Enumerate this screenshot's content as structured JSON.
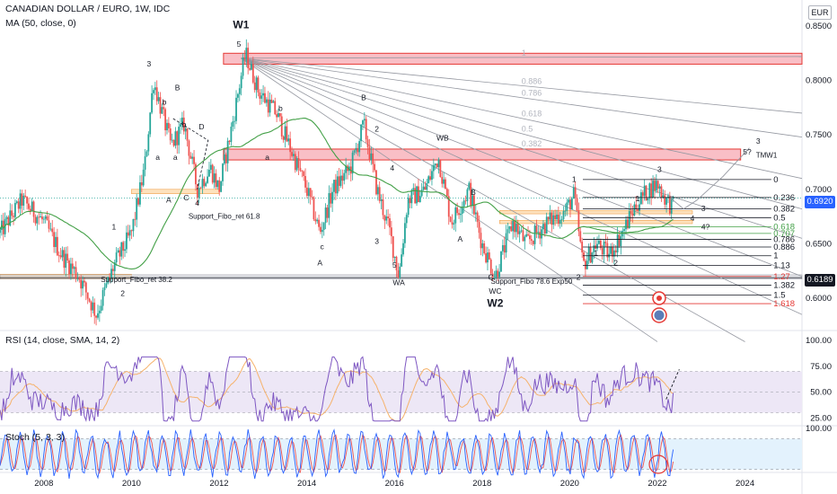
{
  "header": {
    "symbol_line": "CANADIAN DOLLAR / EURO, 1W, IDC",
    "ma_line": "MA (50, close, 0)",
    "rsi_line": "RSI (14, close, SMA, 14, 2)",
    "stoch_line": "Stoch (5, 3, 3)"
  },
  "price_scale": {
    "currency": "EUR",
    "current_price": "0.6920",
    "support_price": "0.6189",
    "current_price_bg": "#2962ff",
    "support_price_bg": "#131722"
  },
  "colors": {
    "candle_up": "#26a69a",
    "candle_down": "#ef5350",
    "ma": "#43a047",
    "rsi": "#7e57c2",
    "rsi_signal": "#f6b26b",
    "stoch_k": "#2962ff",
    "stoch_d": "#ef5350",
    "resistance_zone": "#f8b4bc",
    "resistance_border": "#e53935",
    "support_zone": "#fcd8a8",
    "rsi_band": "#ede7f6",
    "stoch_band": "#e3f2fd"
  },
  "chart_data": [
    {
      "type": "candlestick",
      "pane": "price",
      "x_ticks": [
        "2008",
        "2010",
        "2012",
        "2014",
        "2016",
        "2018",
        "2020",
        "2022",
        "2024"
      ],
      "y_ticks": [
        "0.8500",
        "0.8000",
        "0.7500",
        "0.7000",
        "0.6500",
        "0.6000"
      ],
      "ylim": [
        0.575,
        0.865
      ],
      "price_path": [
        [
          2007.0,
          0.66
        ],
        [
          2007.5,
          0.69
        ],
        [
          2008.0,
          0.67
        ],
        [
          2008.4,
          0.64
        ],
        [
          2008.8,
          0.62
        ],
        [
          2009.2,
          0.585
        ],
        [
          2009.6,
          0.63
        ],
        [
          2010.0,
          0.66
        ],
        [
          2010.3,
          0.72
        ],
        [
          2010.5,
          0.8
        ],
        [
          2010.9,
          0.74
        ],
        [
          2011.2,
          0.76
        ],
        [
          2011.5,
          0.7
        ],
        [
          2011.8,
          0.72
        ],
        [
          2012.0,
          0.7
        ],
        [
          2012.3,
          0.76
        ],
        [
          2012.6,
          0.825
        ],
        [
          2012.9,
          0.79
        ],
        [
          2013.3,
          0.77
        ],
        [
          2013.7,
          0.73
        ],
        [
          2014.0,
          0.7
        ],
        [
          2014.3,
          0.66
        ],
        [
          2014.6,
          0.7
        ],
        [
          2015.0,
          0.72
        ],
        [
          2015.3,
          0.76
        ],
        [
          2015.6,
          0.7
        ],
        [
          2015.9,
          0.66
        ],
        [
          2016.1,
          0.62
        ],
        [
          2016.3,
          0.69
        ],
        [
          2016.7,
          0.7
        ],
        [
          2017.0,
          0.73
        ],
        [
          2017.3,
          0.67
        ],
        [
          2017.7,
          0.7
        ],
        [
          2018.0,
          0.65
        ],
        [
          2018.3,
          0.62
        ],
        [
          2018.7,
          0.67
        ],
        [
          2019.0,
          0.65
        ],
        [
          2019.5,
          0.67
        ],
        [
          2019.9,
          0.68
        ],
        [
          2020.1,
          0.695
        ],
        [
          2020.3,
          0.63
        ],
        [
          2020.6,
          0.65
        ],
        [
          2020.9,
          0.64
        ],
        [
          2021.2,
          0.66
        ],
        [
          2021.5,
          0.685
        ],
        [
          2021.8,
          0.7
        ],
        [
          2022.0,
          0.705
        ],
        [
          2022.2,
          0.69
        ],
        [
          2022.4,
          0.682
        ]
      ],
      "series": [
        {
          "name": "MA (50, close, 0)",
          "kind": "moving_average"
        }
      ],
      "zones": [
        {
          "name": "resistance-top",
          "kind": "resistance",
          "y": [
            0.815,
            0.825
          ],
          "x": [
            2012.1,
            2025.3
          ]
        },
        {
          "name": "resistance-mid",
          "kind": "resistance",
          "y": [
            0.727,
            0.737
          ],
          "x": [
            2012.1,
            2023.9
          ]
        },
        {
          "name": "support-left",
          "kind": "support",
          "y": [
            0.618,
            0.622
          ],
          "x": [
            2007.0,
            2010.0
          ]
        },
        {
          "name": "support-2011",
          "kind": "support",
          "y": [
            0.696,
            0.7
          ],
          "x": [
            2010.0,
            2012.0
          ]
        },
        {
          "name": "support-2018a",
          "kind": "support",
          "y": [
            0.6775,
            0.6805
          ],
          "x": [
            2018.4,
            2022.8
          ]
        },
        {
          "name": "support-2018b",
          "kind": "support",
          "y": [
            0.6685,
            0.6715
          ],
          "x": [
            2018.4,
            2022.8
          ]
        }
      ],
      "fib_levels": [
        {
          "label": "0",
          "value": 0.709,
          "color": "#131722"
        },
        {
          "label": "0.236",
          "value": 0.6925,
          "color": "#131722"
        },
        {
          "label": "0.382",
          "value": 0.682,
          "color": "#131722"
        },
        {
          "label": "0.5",
          "value": 0.674,
          "color": "#131722"
        },
        {
          "label": "0.618",
          "value": 0.6655,
          "color": "#43a047"
        },
        {
          "label": "0.707",
          "value": 0.6595,
          "color": "#43a047"
        },
        {
          "label": "0.786",
          "value": 0.654,
          "color": "#131722"
        },
        {
          "label": "0.886",
          "value": 0.647,
          "color": "#131722"
        },
        {
          "label": "1",
          "value": 0.639,
          "color": "#131722"
        },
        {
          "label": "1.13",
          "value": 0.63,
          "color": "#131722"
        },
        {
          "label": "1.27",
          "value": 0.62,
          "color": "#e53935"
        },
        {
          "label": "1.382",
          "value": 0.612,
          "color": "#131722"
        },
        {
          "label": "1.5",
          "value": 0.603,
          "color": "#131722"
        },
        {
          "label": "1.618",
          "value": 0.595,
          "color": "#e53935"
        }
      ],
      "fan_levels": [
        {
          "label": "1",
          "end": [
            2025.3,
            0.822
          ]
        },
        {
          "label": "0.886",
          "end": [
            2025.3,
            0.77
          ]
        },
        {
          "label": "0.786",
          "end": [
            2025.3,
            0.748
          ]
        },
        {
          "label": "0.618",
          "end": [
            2025.3,
            0.71
          ]
        },
        {
          "label": "0.5",
          "end": [
            2025.3,
            0.682
          ]
        },
        {
          "label": "0.382",
          "end": [
            2025.3,
            0.655
          ]
        },
        {
          "label": "",
          "end": [
            2025.3,
            0.62
          ]
        },
        {
          "label": "",
          "end": [
            2025.3,
            0.585
          ]
        },
        {
          "label": "",
          "end": [
            2024.0,
            0.56
          ]
        },
        {
          "label": "",
          "end": [
            2022.0,
            0.56
          ]
        }
      ],
      "wave_labels": [
        {
          "text": "W1",
          "x": 2012.5,
          "y": 0.848,
          "bold": true
        },
        {
          "text": "5",
          "x": 2012.45,
          "y": 0.831
        },
        {
          "text": "3",
          "x": 2010.4,
          "y": 0.813
        },
        {
          "text": "B",
          "x": 2011.05,
          "y": 0.791
        },
        {
          "text": "b",
          "x": 2010.75,
          "y": 0.778
        },
        {
          "text": "b",
          "x": 2011.2,
          "y": 0.757
        },
        {
          "text": "D",
          "x": 2011.6,
          "y": 0.755
        },
        {
          "text": "a",
          "x": 2010.6,
          "y": 0.727
        },
        {
          "text": "a",
          "x": 2011.0,
          "y": 0.727
        },
        {
          "text": "A",
          "x": 2010.85,
          "y": 0.688
        },
        {
          "text": "C",
          "x": 2011.25,
          "y": 0.69
        },
        {
          "text": "4",
          "x": 2011.5,
          "y": 0.685
        },
        {
          "text": "1",
          "x": 2009.6,
          "y": 0.663
        },
        {
          "text": "2",
          "x": 2009.8,
          "y": 0.602
        },
        {
          "text": "b",
          "x": 2013.4,
          "y": 0.772
        },
        {
          "text": "a",
          "x": 2013.1,
          "y": 0.727
        },
        {
          "text": "B",
          "x": 2015.3,
          "y": 0.782
        },
        {
          "text": "2",
          "x": 2015.6,
          "y": 0.753
        },
        {
          "text": "4",
          "x": 2015.95,
          "y": 0.717
        },
        {
          "text": "3",
          "x": 2015.6,
          "y": 0.65
        },
        {
          "text": "c",
          "x": 2014.35,
          "y": 0.645
        },
        {
          "text": "A",
          "x": 2014.3,
          "y": 0.63
        },
        {
          "text": "5",
          "x": 2016.0,
          "y": 0.628
        },
        {
          "text": "WA",
          "x": 2016.1,
          "y": 0.612
        },
        {
          "text": "WB",
          "x": 2017.1,
          "y": 0.745
        },
        {
          "text": "B",
          "x": 2017.8,
          "y": 0.695
        },
        {
          "text": "A",
          "x": 2017.5,
          "y": 0.652
        },
        {
          "text": "C",
          "x": 2018.2,
          "y": 0.617
        },
        {
          "text": "WC",
          "x": 2018.3,
          "y": 0.604
        },
        {
          "text": "W2",
          "x": 2018.3,
          "y": 0.592,
          "bold": true
        },
        {
          "text": "1",
          "x": 2020.1,
          "y": 0.707
        },
        {
          "text": "2",
          "x": 2020.2,
          "y": 0.617
        },
        {
          "text": "1",
          "x": 2020.6,
          "y": 0.639
        },
        {
          "text": "2",
          "x": 2021.05,
          "y": 0.63
        },
        {
          "text": "3",
          "x": 2022.05,
          "y": 0.716
        },
        {
          "text": "1",
          "x": 2021.55,
          "y": 0.689
        },
        {
          "text": "3",
          "x": 2024.3,
          "y": 0.742
        },
        {
          "text": "3",
          "x": 2023.05,
          "y": 0.68
        },
        {
          "text": "4",
          "x": 2022.8,
          "y": 0.671
        },
        {
          "text": "4?",
          "x": 2023.1,
          "y": 0.663
        },
        {
          "text": "5?",
          "x": 2024.05,
          "y": 0.732
        }
      ],
      "annotations": [
        {
          "text": "Support_Fibo_ret 61.8",
          "x": 2011.3,
          "y": 0.673
        },
        {
          "text": "Support_Fibo_ret 38.2",
          "x": 2009.3,
          "y": 0.615
        },
        {
          "text": "Support_Fibo 78.6 Exp50",
          "x": 2018.2,
          "y": 0.613
        },
        {
          "text": "TMW1",
          "x": 2024.25,
          "y": 0.729
        }
      ],
      "projection": [
        [
          2022.3,
          0.692
        ],
        [
          2022.6,
          0.682
        ],
        [
          2022.9,
          0.69
        ],
        [
          2023.5,
          0.712
        ],
        [
          2024.1,
          0.738
        ]
      ]
    },
    {
      "type": "line",
      "pane": "rsi",
      "title": "RSI (14, close, SMA, 14, 2)",
      "y_ticks": [
        "100.00",
        "75.00",
        "50.00",
        "25.00"
      ],
      "ylim": [
        15,
        105
      ],
      "band": [
        30,
        70
      ],
      "series": [
        {
          "name": "RSI",
          "color": "#7e57c2"
        },
        {
          "name": "RSI-based MA",
          "color": "#f6b26b"
        }
      ],
      "projection": [
        [
          2022.2,
          43
        ],
        [
          2022.5,
          72
        ]
      ]
    },
    {
      "type": "line",
      "pane": "stoch",
      "title": "Stoch (5, 3, 3)",
      "y_ticks": [
        "100.00"
      ],
      "ylim": [
        0,
        105
      ],
      "band": [
        20,
        80
      ],
      "series": [
        {
          "name": "%K",
          "color": "#2962ff"
        },
        {
          "name": "%D",
          "color": "#ef5350"
        }
      ]
    }
  ],
  "markers": [
    {
      "name": "alert-marker",
      "glyph": "⏰"
    },
    {
      "name": "earnings-marker",
      "glyph": ""
    }
  ]
}
